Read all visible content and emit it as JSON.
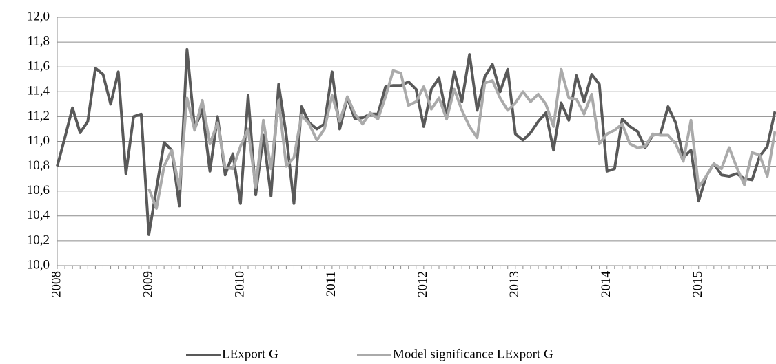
{
  "chart_data": {
    "type": "line",
    "categories": [
      "2008",
      null,
      null,
      null,
      null,
      null,
      null,
      null,
      null,
      null,
      null,
      null,
      "2009",
      null,
      null,
      null,
      null,
      null,
      null,
      null,
      null,
      null,
      null,
      null,
      "2010",
      null,
      null,
      null,
      null,
      null,
      null,
      null,
      null,
      null,
      null,
      null,
      "2011",
      null,
      null,
      null,
      null,
      null,
      null,
      null,
      null,
      null,
      null,
      null,
      "2012",
      null,
      null,
      null,
      null,
      null,
      null,
      null,
      null,
      null,
      null,
      null,
      "2013",
      null,
      null,
      null,
      null,
      null,
      null,
      null,
      null,
      null,
      null,
      null,
      "2014",
      null,
      null,
      null,
      null,
      null,
      null,
      null,
      null,
      null,
      null,
      null,
      "2015",
      null,
      null,
      null,
      null,
      null,
      null,
      null,
      null,
      null,
      null
    ],
    "series": [
      {
        "name": "LExport G",
        "color": "#595959",
        "values": [
          10.8,
          11.03,
          11.27,
          11.07,
          11.16,
          11.59,
          11.54,
          11.3,
          11.56,
          10.74,
          11.2,
          11.22,
          10.25,
          10.62,
          10.99,
          10.93,
          10.48,
          11.74,
          11.1,
          11.26,
          10.76,
          11.2,
          10.73,
          10.9,
          10.5,
          11.37,
          10.57,
          11.05,
          10.56,
          11.46,
          11.05,
          10.5,
          11.28,
          11.15,
          11.1,
          11.14,
          11.56,
          11.1,
          11.35,
          11.18,
          11.19,
          11.22,
          11.22,
          11.44,
          11.45,
          11.45,
          11.48,
          11.42,
          11.12,
          11.42,
          11.51,
          11.2,
          11.56,
          11.32,
          11.7,
          11.25,
          11.52,
          11.62,
          11.4,
          11.58,
          11.06,
          11.01,
          11.07,
          11.16,
          11.23,
          10.93,
          11.31,
          11.17,
          11.53,
          11.32,
          11.54,
          11.46,
          10.76,
          10.78,
          11.18,
          11.12,
          11.08,
          10.95,
          11.05,
          11.06,
          11.28,
          11.15,
          10.87,
          10.93,
          10.52,
          10.72,
          10.82,
          10.73,
          10.72,
          10.74,
          10.7,
          10.69,
          10.88,
          10.96,
          11.24
        ]
      },
      {
        "name": "Model significance LExport G",
        "color": "#aaaaaa",
        "values": [
          null,
          null,
          null,
          null,
          null,
          null,
          null,
          null,
          null,
          null,
          null,
          null,
          10.62,
          10.46,
          10.8,
          10.93,
          10.62,
          11.35,
          11.09,
          11.33,
          10.98,
          11.15,
          10.79,
          10.78,
          10.96,
          11.1,
          10.63,
          11.17,
          10.78,
          11.33,
          10.8,
          10.87,
          11.21,
          11.14,
          11.01,
          11.1,
          11.37,
          11.16,
          11.36,
          11.22,
          11.14,
          11.23,
          11.18,
          11.36,
          11.57,
          11.55,
          11.29,
          11.32,
          11.44,
          11.26,
          11.35,
          11.18,
          11.42,
          11.25,
          11.12,
          11.03,
          11.47,
          11.49,
          11.35,
          11.25,
          11.31,
          11.4,
          11.32,
          11.38,
          11.3,
          11.12,
          11.58,
          11.35,
          11.34,
          11.22,
          11.38,
          10.98,
          11.06,
          11.09,
          11.14,
          10.98,
          10.95,
          10.96,
          11.06,
          11.05,
          11.05,
          10.98,
          10.84,
          11.17,
          10.63,
          10.72,
          10.82,
          10.78,
          10.95,
          10.79,
          10.65,
          10.91,
          10.89,
          10.72,
          11.08
        ]
      }
    ],
    "ylim": [
      10,
      12
    ],
    "yticks": [
      {
        "value": 10,
        "label": "10,0"
      },
      {
        "value": 10.2,
        "label": "10,2"
      },
      {
        "value": 10.4,
        "label": "10,4"
      },
      {
        "value": 10.6,
        "label": "10,6"
      },
      {
        "value": 10.8,
        "label": "10,8"
      },
      {
        "value": 11,
        "label": "11,0"
      },
      {
        "value": 11.2,
        "label": "11,2"
      },
      {
        "value": 11.4,
        "label": "11,4"
      },
      {
        "value": 11.6,
        "label": "11,6"
      },
      {
        "value": 11.8,
        "label": "11,8"
      },
      {
        "value": 12,
        "label": "12,0"
      }
    ],
    "grid": true,
    "legend": "bottom"
  }
}
